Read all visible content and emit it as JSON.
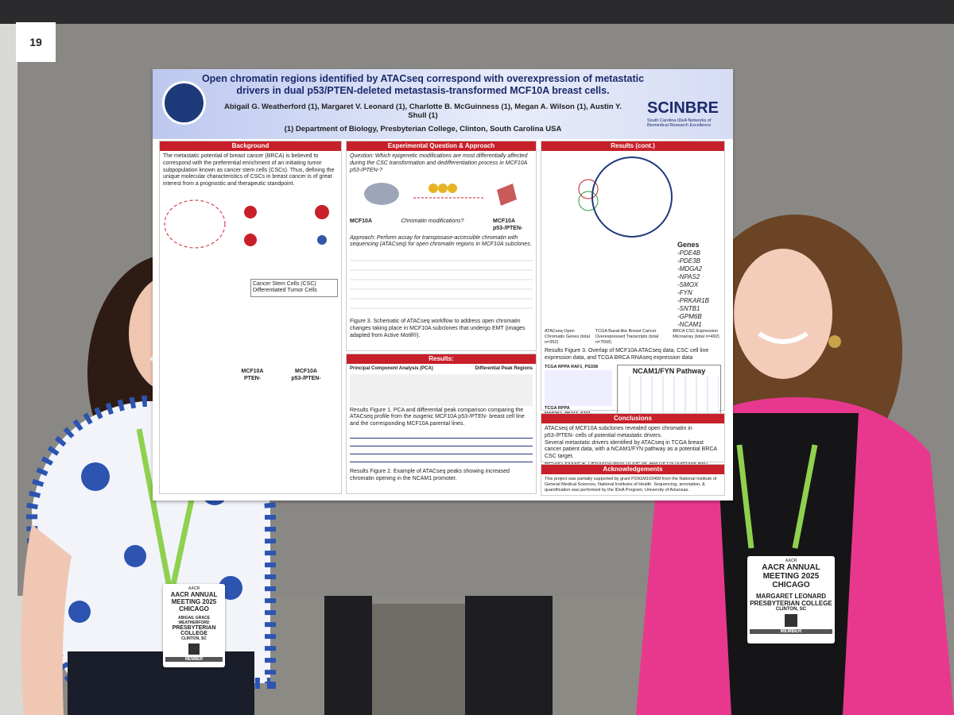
{
  "board_number": "19",
  "poster": {
    "title": "Open chromatin regions identified by ATACseq correspond with overexpression of metastatic drivers in dual p53/PTEN-deleted metastasis-transformed MCF10A breast cells.",
    "authors": "Abigail G. Weatherford (1), Margaret V. Leonard (1), Charlotte B. McGuinness (1), Megan A. Wilson (1), Austin Y. Shull (1)",
    "affiliation": "(1) Department of Biology, Presbyterian College, Clinton, South Carolina USA",
    "logo": "SCINBRE",
    "logo_subtitle": "South Carolina IDeA Networks of Biomedical Research Excellence",
    "background": {
      "heading": "Background",
      "text": "The metastatic potential of breast cancer (BRCA) is believed to correspond with the preferential enrichment of an initiating tumor subpopulation known as cancer stem cells (CSCs). Thus, defining the unique molecular characteristics of CSCs in breast cancer is of great interest from a prognostic and therapeutic standpoint.",
      "legend": [
        "Cancer Stem Cells (CSC)",
        "Differentiated Tumor Cells"
      ],
      "cells": [
        "MCF10A PTEN-",
        "MCF10A p53-/PTEN-"
      ]
    },
    "approach": {
      "heading": "Experimental Question & Approach",
      "question": "Question: Which epigenetic modifications are most differentially affected during the CSC transformation and dedifferentiation process in MCF10A p53-/PTEN-?",
      "approach": "Approach: Perform assay for transposase-accessible chromatin with sequencing (ATACseq) for open chromatin regions in MCF10A subclones.",
      "cell_left": "MCF10A",
      "cell_right": "MCF10A p53-/PTEN-",
      "question_mark": "Chromatin modifications?",
      "figure_caption": "Figure 3. Schematic of ATACseq workflow to address open chromatin changes taking place in MCF10A subclones that undergo EMT (images adapted from Active Motif®)."
    },
    "results": {
      "heading": "Results:",
      "pca_title": "Principal Component Analysis (PCA)",
      "peaks_title": "Differential Peak Regions",
      "figure1": "Results Figure 1. PCA and differential peak comparison comparing the ATACseq profile from the isogenic MCF10A p53-/PTEN- breast cell line and the corresponding MCF10A parental lines.",
      "figure2": "Results Figure 2. Example of ATACseq peaks showing increased chromatin opening in the NCAM1 promoter."
    },
    "results_cont": {
      "heading": "Results (cont.)",
      "venn": [
        "ATACseq Open Chromatin Genes (total n=362)",
        "TCGA Basal-like Breast Cancer Overexpressed Transcripts (total n=7558)",
        "BRCA CSC Expression Microarray (total n=492)"
      ],
      "genes_heading": "Genes",
      "genes": [
        "-PDE4B",
        "-PDE3B",
        "-MDGA2",
        "-NPAS2",
        "-SMOX",
        "-FYN",
        "-PRKAR1B",
        "-SNTB1",
        "-GPM6B",
        "-NCAM1"
      ],
      "figure3": "Results Figure 3. Overlap of MCF10A ATACseq data, CSC cell line expression data, and TCGA BRCA RNAseq expression data",
      "plot1": "TCGA RPPA RAF1_PS338",
      "plot2": "TCGA RPPA MAP2K1_PS217_S221",
      "pathway": "NCAM1/FYN Pathway",
      "figure4": "Results Figure 4. Demonstration of the NCAM1/FYN potential with breast cancer stem cell target."
    },
    "conclusions": {
      "heading": "Conclusions",
      "items": [
        "ATACseq of MCF10A subclones revealed open chromatin in p53-/PTEN- cells of potential metastatic drivers.",
        "Several metastatic drivers identified by ATACseq in TCGA breast cancer patient data, with a NCAM1/FYN pathway as a potential BRCA CSC target."
      ]
    },
    "acknowledgements": {
      "heading": "Acknowledgements",
      "text": "This project was partially supported by grant P20GM103499 from the National Institute of General Medical Sciences, National Institutes of Health. Sequencing, annotation, & quantification was performed by the IDeA Program, University of Arkansas."
    }
  },
  "badges": [
    {
      "lanyard": "AACR",
      "event": "AACR ANNUAL MEETING 2025 CHICAGO",
      "name": "ABIGAIL GRACE WEATHERFORD",
      "org": "PRESBYTERIAN COLLEGE",
      "city": "CLINTON, SC",
      "role": "MEMBER"
    },
    {
      "lanyard": "AACR",
      "event": "AACR ANNUAL MEETING 2025 CHICAGO",
      "name": "MARGARET LEONARD",
      "org": "PRESBYTERIAN COLLEGE",
      "city": "CLINTON, SC",
      "role": "MEMBER"
    }
  ]
}
